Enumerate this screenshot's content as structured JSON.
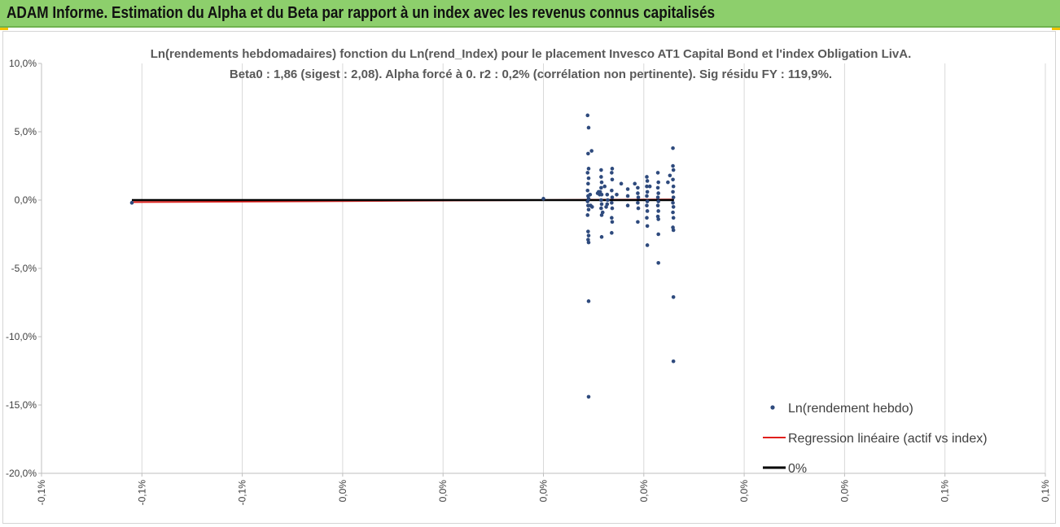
{
  "header": {
    "title": "ADAM Informe. Estimation du Alpha et du Beta par rapport à un index avec les revenus connus capitalisés",
    "background": "#8dcf6c"
  },
  "chart_data": {
    "type": "scatter",
    "title": "Ln(rendements hebdomadaires) fonction du Ln(rend_Index) pour le placement Invesco AT1 Capital Bond  et l'index Obligation LivA.",
    "subtitle": "Beta0 : 1,86  (sigest : 2,08).  Alpha forcé à 0. r2 : 0,2% (corrélation non pertinente). Sig résidu FY : 119,9%.",
    "xlabel": "",
    "ylabel": "",
    "xlim": [
      -0.1,
      0.1
    ],
    "ylim": [
      -20,
      10
    ],
    "x_tick_values": [
      -0.1,
      -0.08,
      -0.06,
      -0.04,
      -0.02,
      0.0,
      0.02,
      0.04,
      0.06,
      0.08,
      0.1
    ],
    "x_tick_labels": [
      "-0,1%",
      "-0,1%",
      "-0,1%",
      "0,0%",
      "0,0%",
      "0,0%",
      "0,0%",
      "0,0%",
      "0,0%",
      "0,1%",
      "0,1%"
    ],
    "y_tick_values": [
      10,
      5,
      0,
      -5,
      -10,
      -15,
      -20
    ],
    "y_tick_labels": [
      "10,0%",
      "5,0%",
      "0,0%",
      "-5,0%",
      "-10,0%",
      "-15,0%",
      "-20,0%"
    ],
    "grid": "vertical",
    "legend_position": "bottom-right",
    "series": [
      {
        "name": "Ln(rendement hebdo)",
        "kind": "scatter",
        "color": "#2e4a7d",
        "points": [
          [
            -0.082,
            -0.2
          ],
          [
            0.0,
            0.1
          ],
          [
            0.0088,
            6.2
          ],
          [
            0.009,
            5.3
          ],
          [
            0.0089,
            3.4
          ],
          [
            0.009,
            2.3
          ],
          [
            0.0088,
            2.0
          ],
          [
            0.009,
            1.6
          ],
          [
            0.0089,
            1.2
          ],
          [
            0.0088,
            0.7
          ],
          [
            0.0089,
            0.3
          ],
          [
            0.009,
            0.1
          ],
          [
            0.0088,
            -0.1
          ],
          [
            0.0089,
            -0.4
          ],
          [
            0.009,
            -0.7
          ],
          [
            0.0088,
            -1.1
          ],
          [
            0.0089,
            -2.3
          ],
          [
            0.009,
            -2.6
          ],
          [
            0.0089,
            -2.9
          ],
          [
            0.009,
            -3.1
          ],
          [
            0.009,
            -7.4
          ],
          [
            0.009,
            -14.4
          ],
          [
            0.0093,
            0.4
          ],
          [
            0.0096,
            3.6
          ],
          [
            0.0097,
            -0.5
          ],
          [
            0.0094,
            -0.4
          ],
          [
            0.0108,
            0.5
          ],
          [
            0.011,
            0.6
          ],
          [
            0.0112,
            0.4
          ],
          [
            0.0113,
            0.6
          ],
          [
            0.0115,
            2.2
          ],
          [
            0.0115,
            1.7
          ],
          [
            0.0116,
            1.3
          ],
          [
            0.0115,
            0.9
          ],
          [
            0.0116,
            0.4
          ],
          [
            0.0115,
            0.0
          ],
          [
            0.0116,
            -0.3
          ],
          [
            0.0115,
            -0.6
          ],
          [
            0.0116,
            -1.1
          ],
          [
            0.0116,
            -2.7
          ],
          [
            0.0118,
            -0.9
          ],
          [
            0.0122,
            1.0
          ],
          [
            0.0125,
            -0.5
          ],
          [
            0.0127,
            0.4
          ],
          [
            0.0128,
            0.0
          ],
          [
            0.0127,
            -0.3
          ],
          [
            0.0137,
            2.3
          ],
          [
            0.0136,
            2.0
          ],
          [
            0.0137,
            1.5
          ],
          [
            0.0136,
            0.7
          ],
          [
            0.0137,
            0.2
          ],
          [
            0.0136,
            -0.2
          ],
          [
            0.0137,
            -0.6
          ],
          [
            0.0136,
            -1.3
          ],
          [
            0.0137,
            -1.6
          ],
          [
            0.0136,
            -2.4
          ],
          [
            0.0146,
            0.4
          ],
          [
            0.0155,
            1.2
          ],
          [
            0.0168,
            0.8
          ],
          [
            0.0168,
            0.3
          ],
          [
            0.0168,
            -0.4
          ],
          [
            0.0182,
            1.2
          ],
          [
            0.0188,
            0.9
          ],
          [
            0.0188,
            0.5
          ],
          [
            0.0189,
            0.2
          ],
          [
            0.0188,
            -0.2
          ],
          [
            0.0189,
            -0.6
          ],
          [
            0.0188,
            -1.6
          ],
          [
            0.0206,
            1.7
          ],
          [
            0.0207,
            1.4
          ],
          [
            0.0206,
            1.0
          ],
          [
            0.0207,
            0.6
          ],
          [
            0.0206,
            0.3
          ],
          [
            0.0207,
            -0.1
          ],
          [
            0.0206,
            -0.4
          ],
          [
            0.0207,
            -0.8
          ],
          [
            0.0206,
            -1.3
          ],
          [
            0.0207,
            -1.9
          ],
          [
            0.0207,
            -3.3
          ],
          [
            0.0212,
            1.0
          ],
          [
            0.0228,
            2.0
          ],
          [
            0.0229,
            1.3
          ],
          [
            0.0228,
            0.9
          ],
          [
            0.0229,
            0.5
          ],
          [
            0.0228,
            0.2
          ],
          [
            0.0229,
            -0.1
          ],
          [
            0.0228,
            -0.4
          ],
          [
            0.0229,
            -0.8
          ],
          [
            0.0228,
            -1.2
          ],
          [
            0.0229,
            -1.4
          ],
          [
            0.0229,
            -2.5
          ],
          [
            0.0229,
            -4.6
          ],
          [
            0.0248,
            1.3
          ],
          [
            0.0252,
            1.8
          ],
          [
            0.0258,
            3.8
          ],
          [
            0.0258,
            2.5
          ],
          [
            0.0259,
            2.2
          ],
          [
            0.0258,
            1.5
          ],
          [
            0.0259,
            1.0
          ],
          [
            0.0258,
            0.6
          ],
          [
            0.0259,
            0.2
          ],
          [
            0.0258,
            -0.2
          ],
          [
            0.0259,
            -0.5
          ],
          [
            0.0258,
            -0.9
          ],
          [
            0.0259,
            -1.3
          ],
          [
            0.0258,
            -2.0
          ],
          [
            0.0259,
            -2.2
          ],
          [
            0.0259,
            -7.1
          ],
          [
            0.0259,
            -11.8
          ]
        ]
      },
      {
        "name": "Regression linéaire (actif vs index)",
        "kind": "line",
        "color": "#e0201c",
        "points": [
          [
            -0.082,
            -0.152
          ],
          [
            0.026,
            0.048
          ]
        ]
      },
      {
        "name": "0%",
        "kind": "line",
        "color": "#000000",
        "points": [
          [
            -0.082,
            0.0
          ],
          [
            0.026,
            0.0
          ]
        ]
      }
    ]
  }
}
